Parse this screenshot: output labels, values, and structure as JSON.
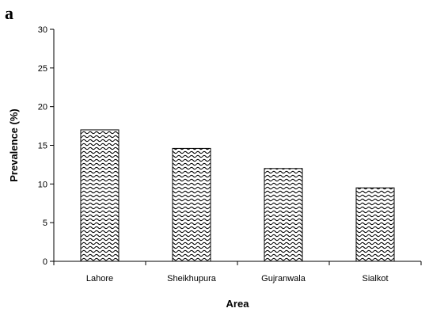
{
  "panel_label": "a",
  "chart_data": {
    "type": "bar",
    "title": "",
    "xlabel": "Area",
    "ylabel": "Prevalence (%)",
    "categories": [
      "Lahore",
      "Sheikhupura",
      "Gujranwala",
      "Sialkot"
    ],
    "values": [
      17,
      14.6,
      12,
      9.5
    ],
    "ylim": [
      0,
      30
    ],
    "yticks": [
      "0",
      "5",
      "10",
      "15",
      "20",
      "25",
      "30"
    ],
    "grid": false,
    "legend": "none",
    "bar_fill": "wavy-pattern",
    "colors": {
      "bar_stroke": "#000000",
      "pattern": "#000000",
      "background": "#ffffff"
    }
  }
}
